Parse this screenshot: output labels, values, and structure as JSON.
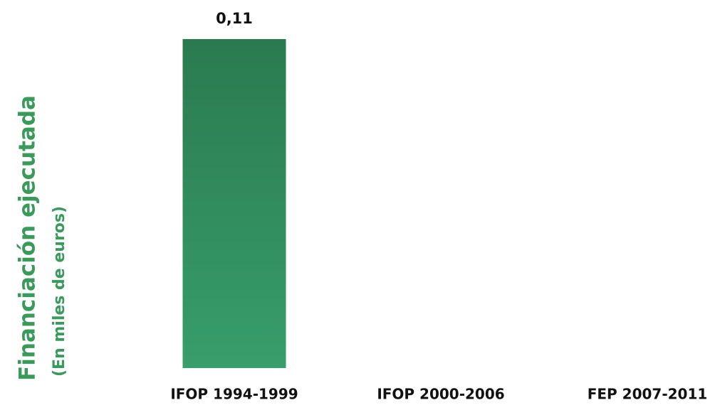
{
  "chart_data": {
    "type": "bar",
    "ylabel": "Financiación ejecutada",
    "ylabel_sub": "(En miles de euros)",
    "categories": [
      "IFOP 1994-1999",
      "IFOP 2000-2006",
      "FEP 2007-2011"
    ],
    "values": [
      0.11,
      null,
      null
    ],
    "value_labels": [
      "0,11",
      null,
      null
    ],
    "color": "#2f8a5c"
  }
}
